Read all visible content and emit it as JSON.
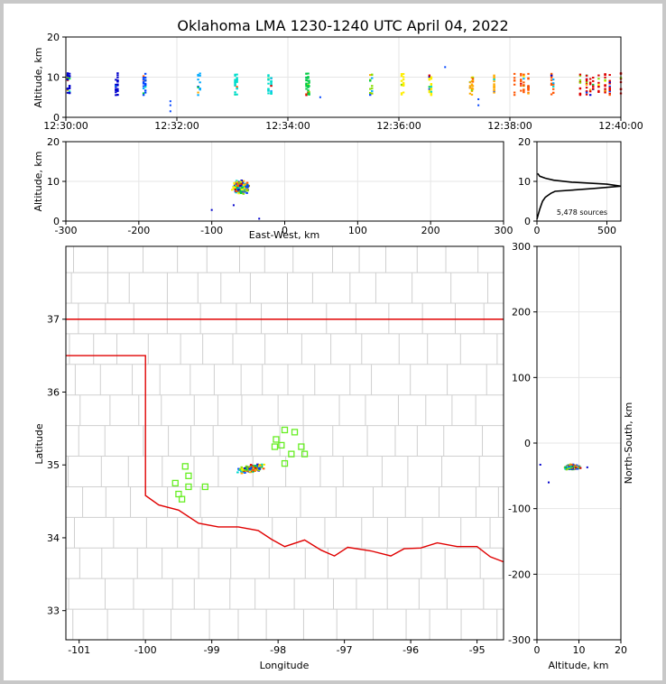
{
  "chart_data": [
    {
      "panel": "time-height",
      "type": "scatter",
      "title": "Oklahoma LMA 1230-1240 UTC April 04, 2022",
      "ylabel": "Altitude, km",
      "xlabel": "",
      "xlim": [
        "12:30:00",
        "12:40:00"
      ],
      "ylim": [
        0,
        20
      ],
      "xticks": [
        "12:30:00",
        "12:32:00",
        "12:34:00",
        "12:36:00",
        "12:38:00",
        "12:40:00"
      ],
      "yticks": [
        "0",
        "10",
        "20"
      ],
      "grid": true,
      "color_scale": "time: blue (early) to red (late)",
      "altitude_band_km": [
        5,
        11
      ],
      "note_pulses_at": [
        "12:30:00",
        "12:30:30",
        "12:31:00",
        "12:31:45",
        "12:32:45",
        "12:33:15",
        "12:34:00",
        "12:35:00",
        "12:36:00",
        "12:37:00",
        "12:37:45",
        "12:38:15",
        "12:39:00",
        "12:39:30"
      ]
    },
    {
      "panel": "east-west-altitude",
      "type": "scatter",
      "xlabel": "East-West, km",
      "ylabel": "Altitude, km",
      "xlim": [
        -300,
        300
      ],
      "ylim": [
        0,
        20
      ],
      "xticks": [
        "-300",
        "-200",
        "-100",
        "0",
        "100",
        "200",
        "300"
      ],
      "yticks": [
        "0",
        "10",
        "20"
      ],
      "grid": true,
      "cluster_center": [
        -60,
        8.5
      ]
    },
    {
      "panel": "altitude-histogram",
      "type": "line",
      "xlim": [
        0,
        600
      ],
      "ylim": [
        0,
        20
      ],
      "xticks": [
        "0",
        "500"
      ],
      "yticks": [
        "0",
        "10",
        "20"
      ],
      "annotation": "5,478 sources",
      "profile": [
        [
          0,
          0.5
        ],
        [
          20,
          3
        ],
        [
          40,
          5
        ],
        [
          60,
          6
        ],
        [
          80,
          6.5
        ],
        [
          100,
          7
        ],
        [
          130,
          7.5
        ],
        [
          250,
          7.8
        ],
        [
          400,
          8.2
        ],
        [
          600,
          8.8
        ],
        [
          500,
          9.3
        ],
        [
          250,
          9.8
        ],
        [
          120,
          10.3
        ],
        [
          60,
          10.8
        ],
        [
          20,
          11.3
        ],
        [
          5,
          12
        ]
      ]
    },
    {
      "panel": "plan-view",
      "type": "map",
      "xlabel": "Longitude",
      "ylabel": "Latitude",
      "xlim": [
        -101.2,
        -94.6
      ],
      "ylim": [
        32.6,
        38
      ],
      "xticks": [
        "-101",
        "-100",
        "-99",
        "-98",
        "-97",
        "-96",
        "-95"
      ],
      "yticks": [
        "33",
        "34",
        "35",
        "36",
        "37"
      ],
      "cluster_center": [
        -98.4,
        34.95
      ],
      "stations": [
        [
          -97.9,
          35.48
        ],
        [
          -97.75,
          35.45
        ],
        [
          -98.03,
          35.35
        ],
        [
          -97.95,
          35.27
        ],
        [
          -98.05,
          35.25
        ],
        [
          -97.65,
          35.25
        ],
        [
          -97.6,
          35.15
        ],
        [
          -97.8,
          35.15
        ],
        [
          -97.9,
          35.02
        ],
        [
          -99.4,
          34.98
        ],
        [
          -99.35,
          34.85
        ],
        [
          -99.55,
          34.75
        ],
        [
          -99.35,
          34.7
        ],
        [
          -99.1,
          34.7
        ],
        [
          -99.5,
          34.6
        ],
        [
          -99.45,
          34.53
        ]
      ]
    },
    {
      "panel": "north-south-altitude",
      "type": "scatter",
      "xlabel": "Altitude, km",
      "ylabel": "North-South, km",
      "xlim": [
        0,
        20
      ],
      "ylim": [
        -300,
        300
      ],
      "xticks": [
        "0",
        "10",
        "20"
      ],
      "yticks": [
        "-300",
        "-200",
        "-100",
        "0",
        "100",
        "200",
        "300"
      ],
      "grid": true,
      "cluster_center": [
        8.5,
        -37
      ]
    }
  ]
}
